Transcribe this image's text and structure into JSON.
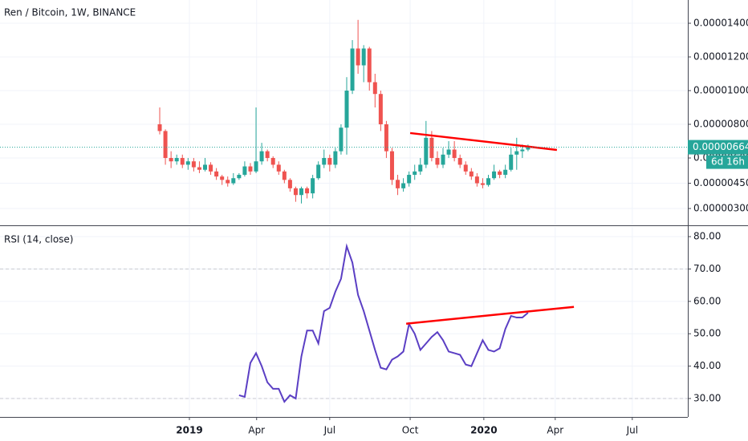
{
  "chart_data": [
    {
      "type": "candlestick",
      "title": "Ren / Bitcoin, 1W, BINANCE",
      "open": [
        8e-06,
        7.6e-06,
        6e-06,
        5.8e-06,
        6e-06,
        5.6e-06,
        5.8e-06,
        5.45e-06,
        5.3e-06,
        5.6e-06,
        5.2e-06,
        4.9e-06,
        4.7e-06,
        4.5e-06,
        4.8e-06,
        5e-06,
        5.5e-06,
        5.2e-06,
        5.8e-06,
        6.4e-06,
        6e-06,
        5.6e-06,
        5.2e-06,
        4.7e-06,
        4.2e-06,
        3.8e-06,
        4.2e-06,
        3.9e-06,
        4.8e-06,
        5.6e-06,
        6e-06,
        5.6e-06,
        6.4e-06,
        7.8e-06,
        1e-05,
        1.25e-05,
        1.15e-05,
        1.25e-05,
        1.05e-05,
        9.8e-06,
        8e-06,
        6.4e-06,
        4.7e-06,
        4.2e-06,
        4.5e-06,
        5e-06,
        5.2e-06,
        5.6e-06,
        7.2e-06,
        6e-06,
        5.6e-06,
        6.2e-06,
        6.5e-06,
        6e-06,
        5.6e-06,
        5.2e-06,
        4.9e-06,
        4.5e-06,
        4.4e-06,
        4.8e-06,
        5.2e-06,
        5e-06,
        5.3e-06,
        6.2e-06,
        6.4e-06,
        6.5e-06
      ],
      "high": [
        9e-06,
        7.7e-06,
        6.4e-06,
        6.2e-06,
        6.2e-06,
        6e-06,
        6e-06,
        5.8e-06,
        6e-06,
        5.75e-06,
        5.4e-06,
        5e-06,
        4.9e-06,
        5.1e-06,
        5.1e-06,
        5.8e-06,
        5.7e-06,
        9e-06,
        6.9e-06,
        6.5e-06,
        6.1e-06,
        5.8e-06,
        5.3e-06,
        4.8e-06,
        4.3e-06,
        4.3e-06,
        4.3e-06,
        5e-06,
        5.8e-06,
        6.5e-06,
        6.2e-06,
        6.6e-06,
        8e-06,
        1.08e-05,
        1.3e-05,
        1.42e-05,
        1.27e-05,
        1.26e-05,
        1.1e-05,
        1e-05,
        8.2e-06,
        6.6e-06,
        5e-06,
        4.8e-06,
        5.2e-06,
        5.6e-06,
        6e-06,
        8.2e-06,
        7.6e-06,
        6.4e-06,
        6.6e-06,
        7e-06,
        7e-06,
        6.2e-06,
        5.8e-06,
        5.4e-06,
        5.1e-06,
        4.8e-06,
        5e-06,
        5.6e-06,
        5.3e-06,
        5.6e-06,
        6.6e-06,
        7.2e-06,
        6.8e-06,
        6.8e-06
      ],
      "low": [
        7.4e-06,
        5.6e-06,
        5.4e-06,
        5.6e-06,
        5.4e-06,
        5.3e-06,
        5.2e-06,
        5.1e-06,
        5.2e-06,
        5e-06,
        4.7e-06,
        4.4e-06,
        4.3e-06,
        4.4e-06,
        4.7e-06,
        4.9e-06,
        5e-06,
        5.1e-06,
        5.6e-06,
        5.8e-06,
        5.4e-06,
        5e-06,
        4.5e-06,
        4e-06,
        3.4e-06,
        3.3e-06,
        3.6e-06,
        3.6e-06,
        4.7e-06,
        5.4e-06,
        5.2e-06,
        5.4e-06,
        6.2e-06,
        6.2e-06,
        9.8e-06,
        1.1e-05,
        1.05e-05,
        1e-05,
        9e-06,
        7.6e-06,
        6e-06,
        4.4e-06,
        3.8e-06,
        4e-06,
        4.3e-06,
        4.7e-06,
        5e-06,
        5.4e-06,
        5.8e-06,
        5.4e-06,
        5.4e-06,
        6e-06,
        5.8e-06,
        5.4e-06,
        5e-06,
        4.7e-06,
        4.3e-06,
        4.2e-06,
        4.3e-06,
        4.7e-06,
        4.8e-06,
        4.8e-06,
        5.2e-06,
        5.3e-06,
        6e-06,
        6.4e-06
      ],
      "close": [
        7.6e-06,
        6e-06,
        5.8e-06,
        6e-06,
        5.6e-06,
        5.8e-06,
        5.45e-06,
        5.3e-06,
        5.6e-06,
        5.2e-06,
        4.9e-06,
        4.7e-06,
        4.5e-06,
        4.8e-06,
        5e-06,
        5.5e-06,
        5.2e-06,
        5.8e-06,
        6.4e-06,
        6e-06,
        5.6e-06,
        5.2e-06,
        4.7e-06,
        4.2e-06,
        3.8e-06,
        4.2e-06,
        3.9e-06,
        4.8e-06,
        5.6e-06,
        6e-06,
        5.6e-06,
        6.4e-06,
        7.8e-06,
        1e-05,
        1.25e-05,
        1.15e-05,
        1.25e-05,
        1.05e-05,
        9.8e-06,
        8e-06,
        6.4e-06,
        4.7e-06,
        4.2e-06,
        4.5e-06,
        5e-06,
        5.2e-06,
        5.6e-06,
        7.2e-06,
        6e-06,
        5.6e-06,
        6.2e-06,
        6.5e-06,
        6e-06,
        5.6e-06,
        5.2e-06,
        4.9e-06,
        4.5e-06,
        4.4e-06,
        4.8e-06,
        5.2e-06,
        5e-06,
        5.3e-06,
        6.2e-06,
        6.4e-06,
        6.5e-06,
        6.64e-06
      ],
      "up_color": "#26a69a",
      "down_color": "#ef5350",
      "xlim": [
        -28.19,
        93.2
      ],
      "ylim": [
        2.05e-06,
        1.538e-05
      ],
      "yticks": [
        {
          "value": 3e-06,
          "label": "0.00000300"
        },
        {
          "value": 4.5e-06,
          "label": "0.00000450"
        },
        {
          "value": 6e-06,
          "label": "0.00000600"
        },
        {
          "value": 8e-06,
          "label": "0.00000800"
        },
        {
          "value": 1e-05,
          "label": "0.00001000"
        },
        {
          "value": 1.2e-05,
          "label": "0.00001200"
        },
        {
          "value": 1.4e-05,
          "label": "0.00001400"
        }
      ],
      "last_price": {
        "value": 6.64e-06,
        "label": "0.00000664"
      },
      "countdown": "6d 16h",
      "trendline": {
        "color": "#ff0000",
        "x": [
          44.2,
          70.1
        ],
        "y": [
          7.48e-06,
          6.48e-06
        ]
      },
      "grid": true
    },
    {
      "type": "line",
      "title": "RSI (14, close)",
      "color": "#5b3fc4",
      "values": [
        null,
        null,
        null,
        null,
        null,
        null,
        null,
        null,
        null,
        null,
        null,
        null,
        null,
        null,
        31,
        30.5,
        41,
        44,
        40,
        35,
        33,
        33,
        29,
        31,
        30,
        43,
        51,
        51,
        47,
        57,
        58,
        63,
        67,
        77,
        72,
        62,
        57,
        51,
        45,
        39.5,
        39,
        42,
        43,
        44.5,
        53,
        50,
        45,
        47,
        49,
        50.5,
        48,
        44.5,
        44,
        43.5,
        40.5,
        40,
        44,
        48,
        45,
        44.5,
        45.5,
        51.5,
        55.5,
        55,
        55,
        56.5
      ],
      "levels": [
        70,
        30
      ],
      "xlim": [
        -28.19,
        93.2
      ],
      "ylim": [
        24.3,
        83
      ],
      "yticks": [
        {
          "value": 30,
          "label": "30.00"
        },
        {
          "value": 40,
          "label": "40.00"
        },
        {
          "value": 50,
          "label": "50.00"
        },
        {
          "value": 60,
          "label": "60.00"
        },
        {
          "value": 70,
          "label": "70.00"
        },
        {
          "value": 80,
          "label": "80.00"
        }
      ],
      "xticks": [
        {
          "value": 5.24,
          "label": "2019"
        },
        {
          "value": 17.1,
          "label": "Apr"
        },
        {
          "value": 30.0,
          "label": "Jul"
        },
        {
          "value": 44.2,
          "label": "Oct"
        },
        {
          "value": 57.2,
          "label": "2020"
        },
        {
          "value": 69.8,
          "label": "Apr"
        },
        {
          "value": 83.4,
          "label": "Jul"
        }
      ],
      "trendline": {
        "color": "#ff0000",
        "x": [
          43.5,
          73.1
        ],
        "y": [
          53.1,
          58.3
        ]
      },
      "grid": true
    }
  ]
}
